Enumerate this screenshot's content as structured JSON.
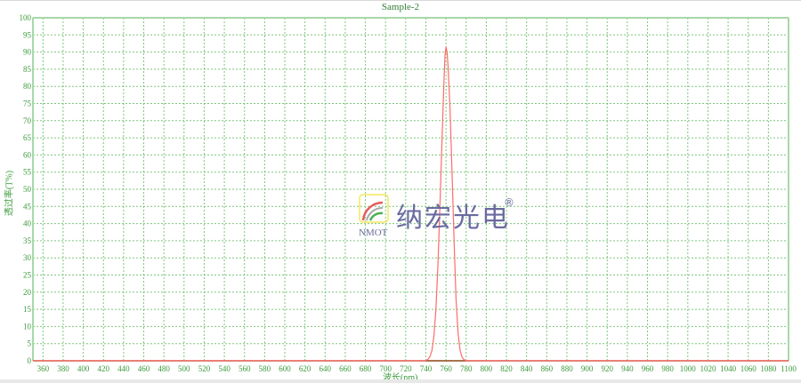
{
  "chart_data": {
    "type": "line",
    "title": "Sample-2",
    "xlabel": "波长(nm)",
    "ylabel": "透过率(T%)",
    "xlim": [
      350,
      1100
    ],
    "ylim": [
      0,
      100
    ],
    "xticks": [
      360,
      380,
      400,
      420,
      440,
      460,
      480,
      500,
      520,
      540,
      560,
      580,
      600,
      620,
      640,
      660,
      680,
      700,
      720,
      740,
      760,
      780,
      800,
      820,
      840,
      860,
      880,
      900,
      920,
      940,
      960,
      980,
      1000,
      1020,
      1040,
      1060,
      1080,
      1100
    ],
    "yticks": [
      0,
      5,
      10,
      15,
      20,
      25,
      30,
      35,
      40,
      45,
      50,
      55,
      60,
      65,
      70,
      75,
      80,
      85,
      90,
      95,
      100
    ],
    "grid": true,
    "series": [
      {
        "color": "#ff6b6b",
        "x": [
          350,
          738,
          740,
          742,
          744,
          746,
          748,
          750,
          752,
          754,
          756,
          758,
          759,
          760,
          761,
          762,
          764,
          766,
          768,
          770,
          772,
          774,
          776,
          778,
          780,
          1100
        ],
        "y": [
          0,
          0,
          0.1,
          0.4,
          1.2,
          3,
          7,
          15,
          28,
          45,
          64,
          82,
          89,
          91.5,
          90,
          86,
          74,
          55,
          35,
          18,
          8,
          3,
          1,
          0.3,
          0,
          0
        ]
      }
    ],
    "colors": {
      "grid": "#5cb85c",
      "axis_left": "#a8d8a8",
      "axis_bottom": "#8b4513",
      "text": "#3a9a3a"
    }
  },
  "watermark": {
    "brand_cn": "纳宏光电",
    "brand_en": "NMOT",
    "mark": "®"
  }
}
